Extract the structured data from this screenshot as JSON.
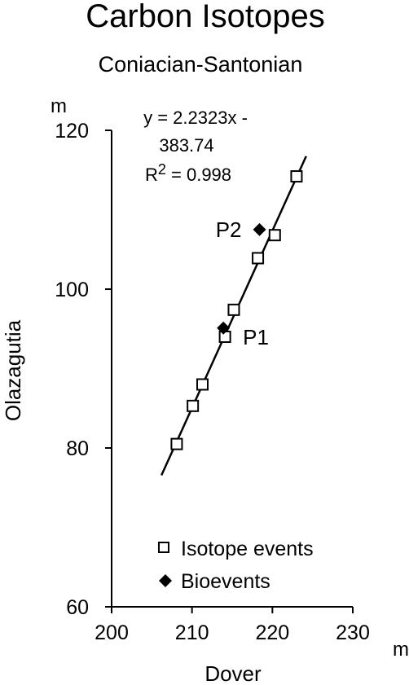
{
  "chart_data": {
    "type": "scatter",
    "title": "Carbon Isotopes",
    "subtitle": "Coniacian-Santonian",
    "xlabel": "Dover",
    "ylabel": "Olazagutia",
    "x_unit": "m",
    "y_unit": "m",
    "xlim": [
      200,
      230
    ],
    "ylim": [
      60,
      120
    ],
    "xticks": [
      "200",
      "210",
      "220",
      "230"
    ],
    "yticks": [
      "60",
      "80",
      "100",
      "120"
    ],
    "grid": false,
    "legend_position": "bottom-right",
    "equation": {
      "line1": "y = 2.2323x -",
      "line2": "383.74",
      "r2_prefix": "R",
      "r2_sup": "2",
      "r2_suffix": " = 0.998"
    },
    "fit_line": {
      "slope": 2.2323,
      "intercept": -383.74,
      "x_range": [
        206.2,
        224.2
      ]
    },
    "series": [
      {
        "name": "Isotope events",
        "marker": "open-square",
        "points": [
          {
            "x": 208.1,
            "y": 80.5
          },
          {
            "x": 210.1,
            "y": 85.3
          },
          {
            "x": 211.3,
            "y": 88.0
          },
          {
            "x": 214.1,
            "y": 94.0
          },
          {
            "x": 215.2,
            "y": 97.4
          },
          {
            "x": 218.2,
            "y": 103.9
          },
          {
            "x": 220.3,
            "y": 106.8
          },
          {
            "x": 223.0,
            "y": 114.2
          }
        ]
      },
      {
        "name": "Bioevents",
        "marker": "filled-diamond",
        "points": [
          {
            "x": 213.9,
            "y": 95.1,
            "label": "P1"
          },
          {
            "x": 218.4,
            "y": 107.5,
            "label": "P2"
          }
        ]
      }
    ]
  }
}
